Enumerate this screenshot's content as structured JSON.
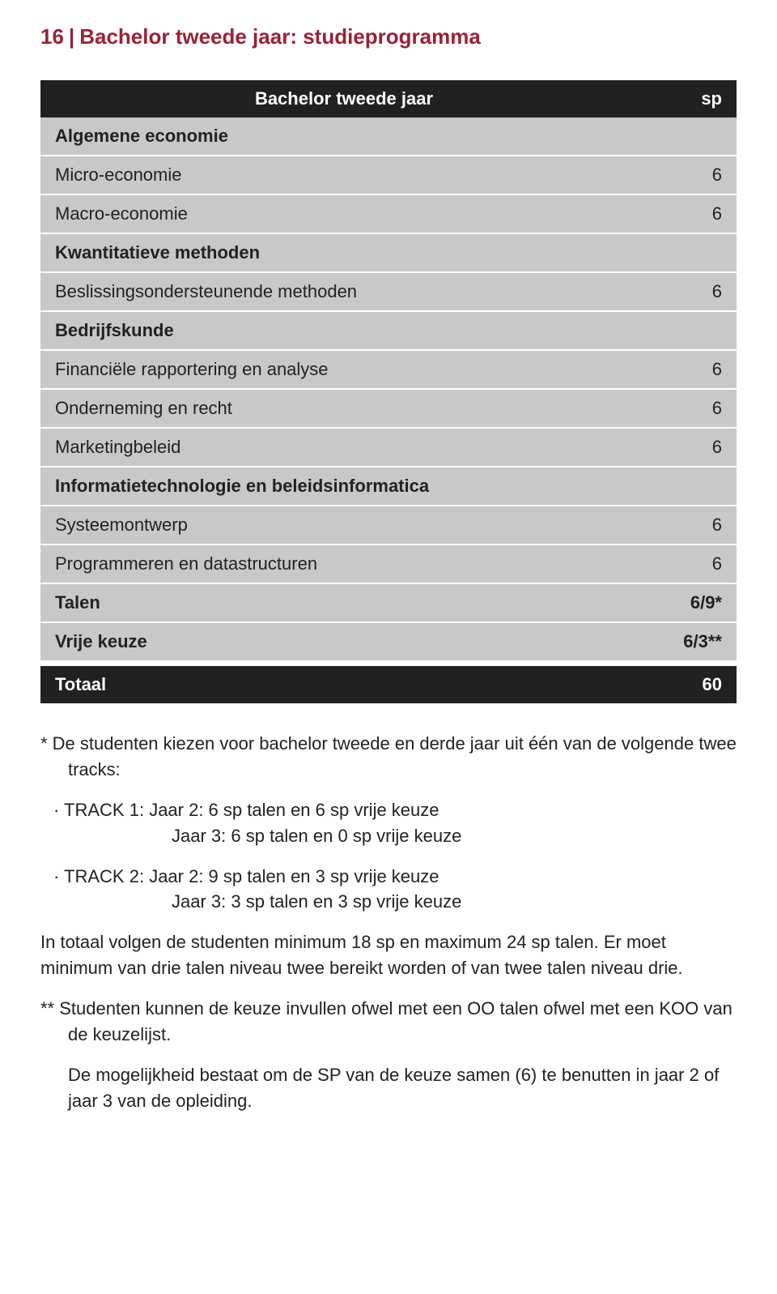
{
  "header": {
    "page_no": "16",
    "title": "Bachelor tweede jaar: studieprogramma"
  },
  "colors": {
    "accent": "#9b2136",
    "dark_bg": "#212121",
    "row_bg": "#c8c8c8",
    "text": "#222222",
    "page_bg": "#ffffff"
  },
  "table": {
    "header": {
      "label": "Bachelor tweede jaar",
      "val": "sp"
    },
    "sections": [
      {
        "type": "section",
        "label": "Algemene economie"
      },
      {
        "type": "item",
        "label": "Micro-economie",
        "val": "6"
      },
      {
        "type": "item",
        "label": "Macro-economie",
        "val": "6"
      },
      {
        "type": "section",
        "label": "Kwantitatieve methoden"
      },
      {
        "type": "item",
        "label": "Beslissingsondersteunende methoden",
        "val": "6"
      },
      {
        "type": "section",
        "label": "Bedrijfskunde"
      },
      {
        "type": "item",
        "label": "Financiële rapportering en analyse",
        "val": "6"
      },
      {
        "type": "item",
        "label": "Onderneming en recht",
        "val": "6"
      },
      {
        "type": "item",
        "label": "Marketingbeleid",
        "val": "6"
      },
      {
        "type": "section",
        "label": "Informatietechnologie en beleidsinformatica"
      },
      {
        "type": "item",
        "label": "Systeemontwerp",
        "val": "6"
      },
      {
        "type": "item",
        "label": "Programmeren en datastructuren",
        "val": "6"
      },
      {
        "type": "section",
        "label": "Talen",
        "val": "6/9*"
      },
      {
        "type": "section",
        "label": "Vrije keuze",
        "val": "6/3**"
      }
    ],
    "total": {
      "label": "Totaal",
      "val": "60"
    }
  },
  "notes": {
    "intro": "*   De studenten kiezen voor bachelor tweede en derde jaar uit één van de volgende twee tracks:",
    "track1_head": "·    TRACK 1:",
    "track1_l1": "Jaar 2: 6 sp talen en 6 sp vrije keuze",
    "track1_l2": "Jaar 3: 6 sp talen en 0 sp vrije keuze",
    "track2_head": "·    TRACK 2:",
    "track2_l1": "Jaar 2: 9 sp talen en 3 sp vrije keuze",
    "track2_l2": "Jaar 3: 3 sp talen en 3 sp vrije keuze",
    "para_total": "In totaal volgen de studenten minimum 18 sp en maximum 24 sp talen. Er moet minimum van drie talen niveau twee bereikt worden of van twee talen niveau drie.",
    "para_dstar": "**  Studenten kunnen de keuze invullen ofwel met een OO talen ofwel met een KOO van de keuzelijst.",
    "para_last": "De mogelijkheid bestaat om de SP van de keuze samen (6) te benutten in jaar 2 of jaar 3 van de opleiding."
  }
}
